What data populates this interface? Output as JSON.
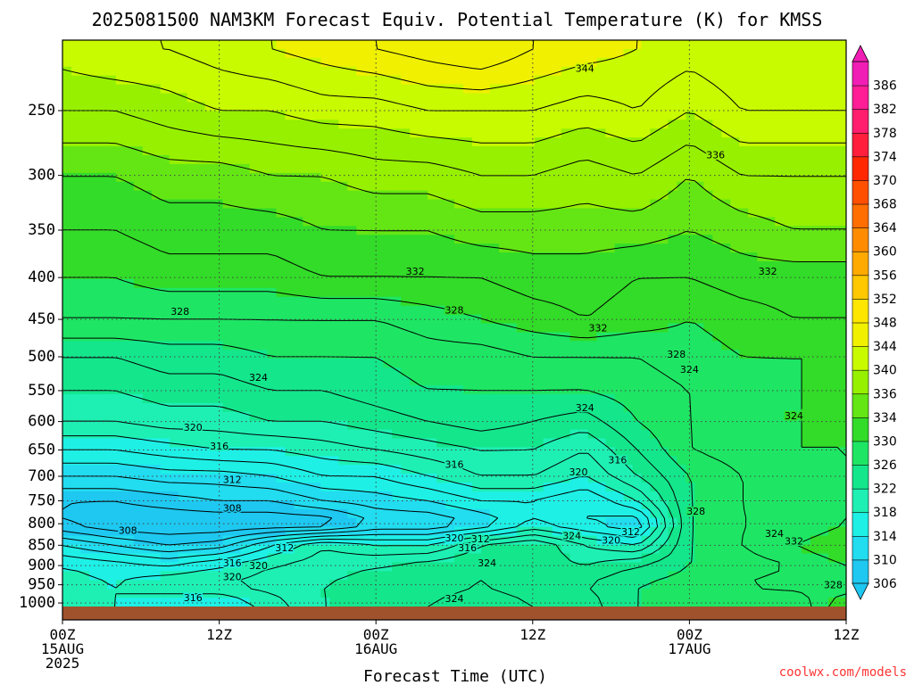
{
  "title": "2025081500 NAM3KM Forecast Equiv. Potential Temperature (K) for KMSS",
  "credit": "coolwx.com/models",
  "chart_data": {
    "type": "heatmap",
    "title": "2025081500 NAM3KM Forecast Equiv. Potential Temperature (K) for KMSS",
    "xlabel": "Forecast Time (UTC)",
    "ylabel": "",
    "x_tick_labels": [
      {
        "hour": 0,
        "lines": [
          "00Z",
          "15AUG",
          "2025"
        ]
      },
      {
        "hour": 12,
        "lines": [
          "12Z"
        ]
      },
      {
        "hour": 24,
        "lines": [
          "00Z",
          "16AUG"
        ]
      },
      {
        "hour": 36,
        "lines": [
          "12Z"
        ]
      },
      {
        "hour": 48,
        "lines": [
          "00Z",
          "17AUG"
        ]
      },
      {
        "hour": 60,
        "lines": [
          "12Z"
        ]
      }
    ],
    "xlim_hours": [
      0,
      60
    ],
    "y_ticks_hpa": [
      1000,
      950,
      900,
      850,
      800,
      750,
      700,
      650,
      600,
      550,
      500,
      450,
      400,
      350,
      300,
      250
    ],
    "ylim_hpa": [
      1020,
      205
    ],
    "y_scale": "log",
    "grid": true,
    "terrain_below_hpa": 1010,
    "colorbar_levels": [
      306,
      310,
      314,
      318,
      322,
      326,
      330,
      334,
      336,
      340,
      344,
      348,
      352,
      356,
      360,
      364,
      368,
      370,
      374,
      378,
      382,
      386
    ],
    "colorbar_colors": [
      "#1ec8f0",
      "#22dcf0",
      "#1ef0e6",
      "#1ef0b4",
      "#14e68c",
      "#1ee664",
      "#32dc28",
      "#64e614",
      "#96f000",
      "#c8fa00",
      "#f0f000",
      "#ffe600",
      "#ffc800",
      "#ffaa00",
      "#ff8c00",
      "#ff6e00",
      "#ff5000",
      "#ff2800",
      "#ff1e3c",
      "#ff1e6e",
      "#ff1e96",
      "#f01eb4"
    ],
    "series": [
      {
        "hpa": 1000,
        "values": [
          320,
          318,
          316,
          316,
          319,
          322,
          323,
          324,
          325,
          324,
          323,
          326,
          328,
          327,
          326,
          332
        ]
      },
      {
        "hpa": 950,
        "values": [
          319,
          318,
          320,
          320,
          321,
          322,
          323,
          323,
          324,
          323,
          324,
          326,
          327,
          328,
          329,
          328
        ]
      },
      {
        "hpa": 900,
        "values": [
          318,
          317,
          316,
          318,
          320,
          321,
          322,
          323,
          324,
          323,
          322,
          324,
          326,
          327,
          328,
          330
        ]
      },
      {
        "hpa": 850,
        "values": [
          314,
          312,
          310,
          311,
          316,
          320,
          318,
          318,
          322,
          324,
          320,
          318,
          326,
          328,
          330,
          332
        ]
      },
      {
        "hpa": 800,
        "values": [
          308,
          306,
          306,
          306,
          306,
          306,
          310,
          310,
          312,
          316,
          314,
          312,
          326,
          328,
          328,
          330
        ]
      },
      {
        "hpa": 750,
        "values": [
          308,
          308,
          309,
          310,
          310,
          312,
          313,
          314,
          316,
          316,
          314,
          318,
          326,
          328,
          329,
          330
        ]
      },
      {
        "hpa": 700,
        "values": [
          312,
          312,
          313,
          313,
          314,
          316,
          316,
          318,
          320,
          320,
          318,
          322,
          326,
          328,
          329,
          330
        ]
      },
      {
        "hpa": 650,
        "values": [
          316,
          316,
          317,
          318,
          318,
          319,
          320,
          321,
          322,
          322,
          320,
          324,
          328,
          329,
          330,
          330
        ]
      },
      {
        "hpa": 600,
        "values": [
          320,
          320,
          321,
          321,
          322,
          322,
          323,
          324,
          325,
          324,
          323,
          326,
          328,
          329,
          330,
          330
        ]
      },
      {
        "hpa": 550,
        "values": [
          322,
          322,
          323,
          323,
          324,
          324,
          325,
          326,
          326,
          326,
          326,
          327,
          328,
          329,
          330,
          330
        ]
      },
      {
        "hpa": 500,
        "values": [
          324,
          324,
          325,
          325,
          326,
          326,
          326,
          327,
          327,
          328,
          328,
          328,
          329,
          330,
          330,
          330
        ]
      },
      {
        "hpa": 450,
        "values": [
          328,
          328,
          328,
          328,
          328,
          328,
          328,
          329,
          330,
          331,
          332,
          331,
          330,
          331,
          332,
          332
        ]
      },
      {
        "hpa": 400,
        "values": [
          330,
          330,
          331,
          331,
          331,
          332,
          332,
          332,
          332,
          333,
          333,
          332,
          332,
          333,
          333,
          333
        ]
      },
      {
        "hpa": 350,
        "values": [
          332,
          332,
          333,
          333,
          333,
          334,
          334,
          334,
          335,
          335,
          335,
          335,
          334,
          335,
          336,
          336
        ]
      },
      {
        "hpa": 300,
        "values": [
          334,
          334,
          335,
          335,
          336,
          336,
          337,
          337,
          338,
          338,
          337,
          338,
          336,
          338,
          338,
          338
        ]
      },
      {
        "hpa": 250,
        "values": [
          338,
          338,
          339,
          340,
          340,
          341,
          341,
          342,
          342,
          342,
          341,
          342,
          340,
          342,
          342,
          342
        ]
      },
      {
        "hpa": 210,
        "values": [
          341,
          342,
          342,
          343,
          344,
          345,
          346,
          347,
          348,
          346,
          345,
          344,
          343,
          344,
          344,
          344
        ]
      }
    ],
    "contour_labels": [
      {
        "text": "344",
        "hour": 40,
        "hpa": 222
      },
      {
        "text": "336",
        "hour": 50,
        "hpa": 283
      },
      {
        "text": "332",
        "hour": 27,
        "hpa": 393
      },
      {
        "text": "332",
        "hour": 54,
        "hpa": 393
      },
      {
        "text": "328",
        "hour": 9,
        "hpa": 440
      },
      {
        "text": "328",
        "hour": 30,
        "hpa": 438
      },
      {
        "text": "332",
        "hour": 41,
        "hpa": 461
      },
      {
        "text": "328",
        "hour": 47,
        "hpa": 496
      },
      {
        "text": "324",
        "hour": 48,
        "hpa": 518
      },
      {
        "text": "324",
        "hour": 15,
        "hpa": 530
      },
      {
        "text": "324",
        "hour": 40,
        "hpa": 577
      },
      {
        "text": "324",
        "hour": 56,
        "hpa": 590
      },
      {
        "text": "320",
        "hour": 10,
        "hpa": 610
      },
      {
        "text": "316",
        "hour": 12,
        "hpa": 643
      },
      {
        "text": "316",
        "hour": 30,
        "hpa": 677
      },
      {
        "text": "316",
        "hour": 42.5,
        "hpa": 668
      },
      {
        "text": "320",
        "hour": 39.5,
        "hpa": 691
      },
      {
        "text": "312",
        "hour": 13,
        "hpa": 706
      },
      {
        "text": "308",
        "hour": 13,
        "hpa": 765
      },
      {
        "text": "328",
        "hour": 48.5,
        "hpa": 772
      },
      {
        "text": "308",
        "hour": 5,
        "hpa": 815
      },
      {
        "text": "320",
        "hour": 30,
        "hpa": 832
      },
      {
        "text": "312",
        "hour": 32,
        "hpa": 835
      },
      {
        "text": "324",
        "hour": 39,
        "hpa": 827
      },
      {
        "text": "320",
        "hour": 42,
        "hpa": 838
      },
      {
        "text": "312",
        "hour": 43.5,
        "hpa": 818
      },
      {
        "text": "324",
        "hour": 54.5,
        "hpa": 822
      },
      {
        "text": "332",
        "hour": 56,
        "hpa": 840
      },
      {
        "text": "312",
        "hour": 17,
        "hpa": 856
      },
      {
        "text": "316",
        "hour": 31,
        "hpa": 856
      },
      {
        "text": "324",
        "hour": 32.5,
        "hpa": 893
      },
      {
        "text": "316",
        "hour": 13,
        "hpa": 893
      },
      {
        "text": "320",
        "hour": 15,
        "hpa": 900
      },
      {
        "text": "320",
        "hour": 13,
        "hpa": 928
      },
      {
        "text": "328",
        "hour": 59,
        "hpa": 950
      },
      {
        "text": "316",
        "hour": 10,
        "hpa": 985
      },
      {
        "text": "324",
        "hour": 30,
        "hpa": 988
      }
    ]
  }
}
